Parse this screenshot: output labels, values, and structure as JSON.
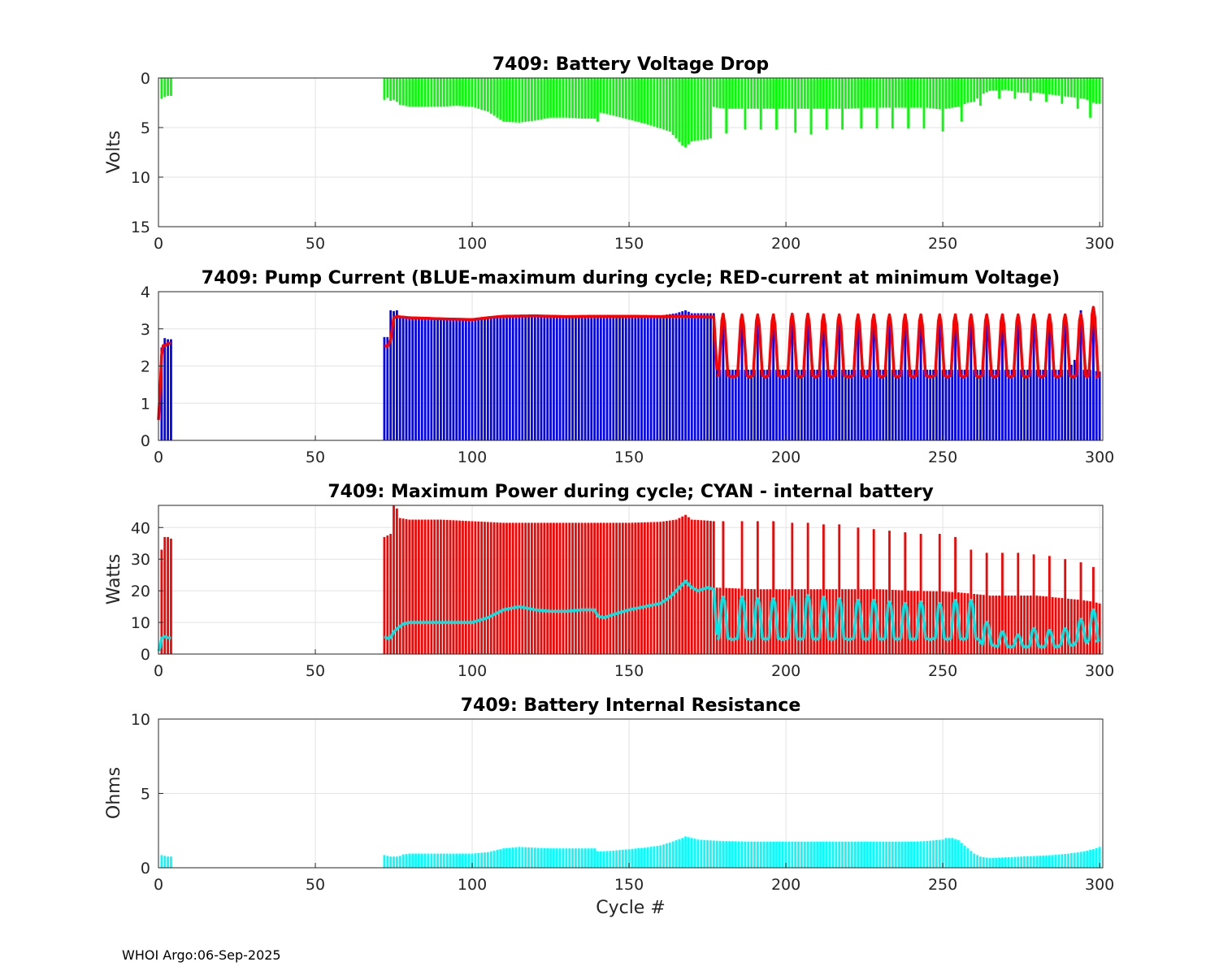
{
  "footer": "WHOI Argo:06-Sep-2025",
  "chart_data": [
    {
      "id": "voltage",
      "type": "bar",
      "title": "7409: Battery Voltage Drop",
      "ylabel": "Volts",
      "xlabel": "",
      "xlim": [
        0,
        301
      ],
      "ylim": [
        0,
        15
      ],
      "y_reversed": true,
      "xticks": [
        0,
        50,
        100,
        150,
        200,
        250,
        300
      ],
      "yticks": [
        0,
        5,
        10,
        15
      ],
      "grid": true,
      "bar_color": "#00ff00",
      "series": [
        {
          "name": "voltage drop",
          "x": [
            1,
            2,
            3,
            4,
            72,
            73,
            74,
            75,
            76,
            77,
            80,
            85,
            90,
            95,
            100,
            105,
            108,
            110,
            115,
            120,
            125,
            130,
            135,
            139,
            140,
            141,
            145,
            150,
            155,
            160,
            163,
            165,
            167,
            168,
            169,
            170,
            172,
            175,
            176,
            177,
            178,
            181,
            185,
            190,
            195,
            200,
            205,
            210,
            215,
            220,
            225,
            230,
            235,
            240,
            245,
            250,
            251,
            255,
            258,
            260,
            262,
            265,
            270,
            275,
            280,
            285,
            290,
            295,
            297,
            298,
            299,
            300
          ],
          "values": [
            2.1,
            1.9,
            1.8,
            1.8,
            2.2,
            2.0,
            2.3,
            2.2,
            2.4,
            2.7,
            2.9,
            2.9,
            2.9,
            2.8,
            2.9,
            3.4,
            4.0,
            4.4,
            4.5,
            4.3,
            4.0,
            4.0,
            4.1,
            4.1,
            4.4,
            3.5,
            3.8,
            4.2,
            4.6,
            5.1,
            5.4,
            6.1,
            6.8,
            7.0,
            6.7,
            6.4,
            6.3,
            6.2,
            6.1,
            2.9,
            3.0,
            3.1,
            3.1,
            3.1,
            3.1,
            3.1,
            3.1,
            3.1,
            3.1,
            3.1,
            3.0,
            3.0,
            3.0,
            3.0,
            3.0,
            3.2,
            3.1,
            2.9,
            2.5,
            2.4,
            1.7,
            1.3,
            1.2,
            1.5,
            1.5,
            1.7,
            1.9,
            2.1,
            2.3,
            2.5,
            2.6,
            2.6
          ]
        },
        {
          "name": "voltage spikes",
          "x": [
            181,
            187,
            192,
            197,
            203,
            208,
            213,
            218,
            224,
            229,
            234,
            239,
            244,
            250,
            256
          ],
          "values": [
            5.6,
            5.2,
            5.2,
            5.2,
            5.5,
            5.7,
            5.2,
            5.2,
            5.1,
            5.1,
            5.1,
            5.1,
            5.1,
            5.4,
            4.4
          ]
        },
        {
          "name": "small spikes",
          "x": [
            262,
            268,
            273,
            278,
            283,
            288,
            293,
            297
          ],
          "values": [
            2.8,
            2.1,
            2.1,
            2.3,
            2.4,
            2.6,
            3.1,
            4.0
          ]
        }
      ]
    },
    {
      "id": "current",
      "type": "bar+line",
      "title": "7409: Pump Current (BLUE-maximum during cycle; RED-current at minimum Voltage)",
      "ylabel": "",
      "xlabel": "",
      "xlim": [
        0,
        301
      ],
      "ylim": [
        0,
        4
      ],
      "xticks": [
        0,
        50,
        100,
        150,
        200,
        250,
        300
      ],
      "yticks": [
        0,
        1,
        2,
        3,
        4
      ],
      "grid": true,
      "series": [
        {
          "name": "BLUE-maximum during cycle",
          "kind": "bar",
          "color": "#0000ff",
          "x": [
            1,
            2,
            3,
            4,
            72,
            73,
            74,
            75,
            76,
            77,
            80,
            90,
            100,
            110,
            120,
            130,
            140,
            150,
            160,
            165,
            168,
            170,
            175,
            177,
            178,
            200,
            220,
            240,
            260,
            280,
            290,
            293,
            295,
            297,
            300
          ],
          "values": [
            2.5,
            2.75,
            2.72,
            2.72,
            2.78,
            2.78,
            3.5,
            3.48,
            3.5,
            3.3,
            3.3,
            3.28,
            3.28,
            3.32,
            3.32,
            3.33,
            3.33,
            3.34,
            3.36,
            3.42,
            3.5,
            3.42,
            3.42,
            3.42,
            1.9,
            1.9,
            1.9,
            1.9,
            1.9,
            1.9,
            1.9,
            2.3,
            1.9,
            1.9,
            1.85
          ]
        },
        {
          "name": "blue peaks",
          "kind": "bar",
          "color": "#0000ff",
          "x": [
            180,
            186,
            191,
            196,
            202,
            207,
            212,
            217,
            223,
            228,
            233,
            238,
            243,
            249,
            254,
            259,
            264,
            269,
            274,
            279,
            284,
            289,
            294,
            298
          ],
          "values": [
            3.4,
            3.38,
            3.38,
            3.38,
            3.4,
            3.4,
            3.38,
            3.38,
            3.38,
            3.38,
            3.38,
            3.38,
            3.38,
            3.4,
            3.38,
            3.38,
            3.38,
            3.38,
            3.38,
            3.38,
            3.38,
            3.38,
            3.5,
            3.55
          ]
        },
        {
          "name": "RED-current at minimum Voltage",
          "kind": "line",
          "color": "#ff0000",
          "x": [
            0,
            0.5,
            1,
            1.5,
            2,
            3,
            4,
            72,
            73,
            74,
            75,
            76,
            80,
            90,
            100,
            105,
            110,
            120,
            130,
            140,
            150,
            160,
            165,
            170,
            175,
            177,
            178
          ],
          "values": [
            0.55,
            1.3,
            2.3,
            2.55,
            2.55,
            2.6,
            2.62,
            2.55,
            2.52,
            2.7,
            3.3,
            3.33,
            3.3,
            3.27,
            3.25,
            3.3,
            3.34,
            3.35,
            3.33,
            3.34,
            3.34,
            3.33,
            3.34,
            3.33,
            3.32,
            3.32,
            1.9
          ]
        },
        {
          "name": "red oscillation tail",
          "kind": "line_oscillating",
          "color": "#ff0000",
          "x_start": 178,
          "x_end": 300,
          "trough": 1.75,
          "peak_cycles": [
            180,
            186,
            191,
            196,
            202,
            207,
            212,
            217,
            223,
            228,
            233,
            238,
            243,
            249,
            254,
            259,
            264,
            269,
            274,
            279,
            284,
            289,
            294,
            298
          ],
          "peak_values": [
            3.4,
            3.38,
            3.38,
            3.38,
            3.4,
            3.4,
            3.38,
            3.38,
            3.38,
            3.38,
            3.38,
            3.38,
            3.38,
            3.38,
            3.38,
            3.38,
            3.38,
            3.38,
            3.38,
            3.38,
            3.38,
            3.38,
            3.4,
            3.58
          ]
        }
      ]
    },
    {
      "id": "power",
      "type": "bar+line",
      "title": "7409: Maximum Power during cycle; CYAN - internal battery",
      "ylabel": "Watts",
      "xlabel": "",
      "xlim": [
        0,
        301
      ],
      "ylim": [
        0,
        47
      ],
      "xticks": [
        0,
        50,
        100,
        150,
        200,
        250,
        300
      ],
      "yticks": [
        0,
        10,
        20,
        30,
        40
      ],
      "grid": true,
      "series": [
        {
          "name": "Maximum Power during cycle",
          "kind": "bar",
          "color": "#ff0000",
          "x": [
            1,
            2,
            3,
            4,
            72,
            73,
            74,
            75,
            76,
            77,
            80,
            90,
            100,
            110,
            120,
            130,
            140,
            150,
            160,
            165,
            168,
            170,
            175,
            177,
            178,
            190,
            200,
            210,
            220,
            230,
            240,
            250,
            255,
            260,
            265,
            270,
            280,
            290,
            295,
            298,
            300
          ],
          "values": [
            33,
            37,
            37,
            36.5,
            37,
            37.5,
            38,
            47,
            46,
            43,
            42.5,
            42.5,
            42,
            41.5,
            41.5,
            41.5,
            41.5,
            41.5,
            41.8,
            42.5,
            44,
            42.5,
            42.2,
            42,
            21,
            20.5,
            20.5,
            20.5,
            20.5,
            20.5,
            20,
            19.8,
            19.5,
            19,
            18.5,
            18.5,
            18.5,
            17.5,
            17,
            16.5,
            16
          ]
        },
        {
          "name": "power peaks",
          "kind": "bar",
          "color": "#ff0000",
          "x": [
            180,
            186,
            191,
            196,
            202,
            207,
            212,
            217,
            223,
            228,
            233,
            238,
            243,
            249,
            254,
            259,
            264,
            269,
            274,
            279,
            284,
            289,
            294,
            298
          ],
          "values": [
            42,
            42,
            42,
            42,
            41.5,
            41.5,
            41,
            41,
            40,
            39.5,
            39,
            38.5,
            38,
            38,
            37,
            33,
            32,
            32,
            32,
            31.5,
            31,
            30,
            29,
            27.5
          ]
        },
        {
          "name": "CYAN - internal battery",
          "kind": "line",
          "color": "#00e5e5",
          "x": [
            0,
            0.5,
            1,
            2,
            3,
            4,
            72,
            73,
            74,
            75,
            76,
            78,
            80,
            85,
            90,
            100,
            105,
            110,
            115,
            120,
            125,
            130,
            135,
            139,
            140,
            142,
            145,
            150,
            155,
            160,
            163,
            165,
            167,
            168,
            170,
            172,
            175,
            177,
            178
          ],
          "values": [
            1,
            2,
            5,
            5.5,
            5.2,
            5,
            5.5,
            5,
            5.2,
            7,
            8,
            9.5,
            10,
            10,
            10,
            10,
            11.5,
            14,
            15,
            14,
            13.5,
            13.5,
            14,
            14,
            12,
            11.5,
            12.5,
            14,
            15,
            16,
            18,
            20,
            22,
            23,
            21,
            20,
            21,
            20.5,
            6
          ]
        },
        {
          "name": "cyan oscillation tail",
          "kind": "line_oscillating",
          "color": "#00e5e5",
          "x_start": 178,
          "x_end": 300,
          "peak_cycles": [
            180,
            186,
            191,
            196,
            202,
            207,
            212,
            217,
            223,
            228,
            233,
            238,
            243,
            249,
            254,
            259,
            264,
            269,
            274,
            279,
            284,
            289,
            294,
            298
          ],
          "peak_values": [
            18,
            18,
            17.5,
            17.5,
            18,
            18.5,
            18,
            17.5,
            17,
            17,
            16.5,
            16,
            16.5,
            16,
            17,
            17,
            10,
            7,
            6,
            8,
            7.5,
            8,
            11,
            14
          ],
          "trough_values": [
            5,
            5,
            5,
            5,
            5,
            5,
            5,
            5,
            5,
            5,
            5,
            5,
            5,
            5,
            5,
            5,
            3,
            2.5,
            2.5,
            2.5,
            2.5,
            3,
            4,
            4.5
          ]
        }
      ]
    },
    {
      "id": "resistance",
      "type": "bar",
      "title": "7409: Battery Internal Resistance",
      "ylabel": "Ohms",
      "xlabel": "Cycle #",
      "xlim": [
        0,
        301
      ],
      "ylim": [
        0,
        10
      ],
      "xticks": [
        0,
        50,
        100,
        150,
        200,
        250,
        300
      ],
      "yticks": [
        0,
        5,
        10
      ],
      "grid": true,
      "bar_color": "#00ffff",
      "series": [
        {
          "name": "internal resistance",
          "x": [
            1,
            2,
            3,
            4,
            72,
            73,
            74,
            75,
            76,
            77,
            78,
            80,
            85,
            90,
            100,
            105,
            110,
            115,
            120,
            125,
            130,
            135,
            139,
            140,
            141,
            145,
            150,
            155,
            160,
            163,
            165,
            167,
            168,
            170,
            172,
            175,
            180,
            190,
            200,
            210,
            220,
            230,
            240,
            245,
            250,
            251,
            253,
            255,
            258,
            260,
            262,
            265,
            270,
            275,
            280,
            285,
            290,
            295,
            298,
            300
          ],
          "values": [
            0.85,
            0.8,
            0.75,
            0.75,
            0.85,
            0.8,
            0.75,
            0.75,
            0.75,
            0.8,
            0.9,
            0.95,
            0.95,
            0.95,
            0.95,
            1.05,
            1.3,
            1.4,
            1.35,
            1.3,
            1.3,
            1.3,
            1.3,
            1.1,
            1.1,
            1.15,
            1.25,
            1.35,
            1.5,
            1.7,
            1.85,
            2.0,
            2.1,
            2.0,
            1.9,
            1.85,
            1.8,
            1.75,
            1.75,
            1.75,
            1.75,
            1.75,
            1.75,
            1.8,
            1.9,
            2.0,
            2.0,
            1.85,
            1.3,
            0.95,
            0.75,
            0.65,
            0.7,
            0.75,
            0.8,
            0.85,
            0.95,
            1.1,
            1.25,
            1.4
          ]
        }
      ]
    }
  ]
}
